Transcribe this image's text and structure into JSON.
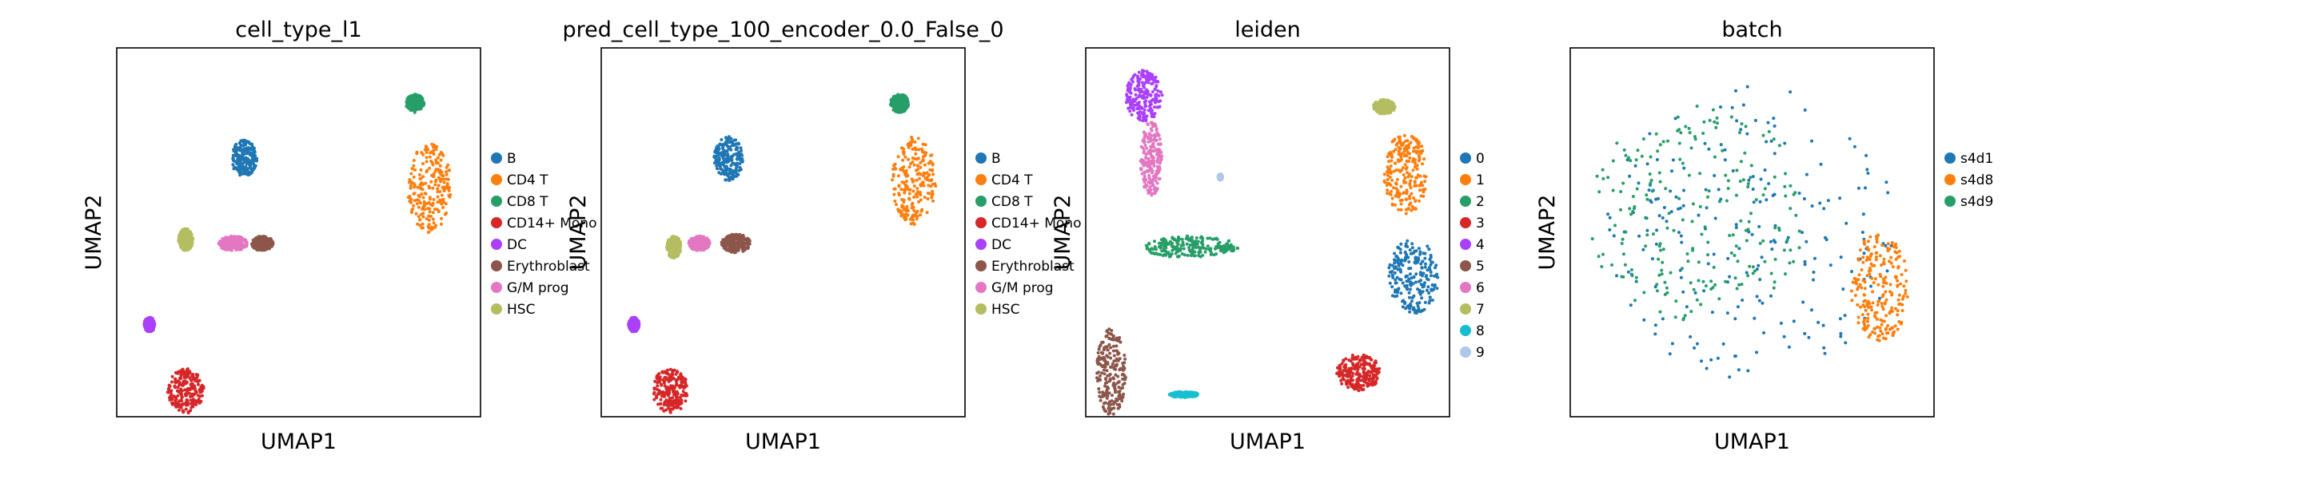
{
  "chart_data": [
    {
      "type": "scatter",
      "title": "cell_type_l1",
      "xlabel": "UMAP1",
      "ylabel": "UMAP2",
      "legend_placement": "right",
      "legend": [
        {
          "label": "B",
          "color": "#1f77b4"
        },
        {
          "label": "CD4 T",
          "color": "#ff7f0e"
        },
        {
          "label": "CD8 T",
          "color": "#279e68"
        },
        {
          "label": "CD14+ Mono",
          "color": "#d62728"
        },
        {
          "label": "DC",
          "color": "#aa40fc"
        },
        {
          "label": "Erythroblast",
          "color": "#8c564b"
        },
        {
          "label": "G/M prog",
          "color": "#e377c2"
        },
        {
          "label": "HSC",
          "color": "#b5bd61"
        }
      ],
      "clusters": [
        {
          "label": "B",
          "cx": 0.35,
          "cy": 0.7,
          "rx": 0.035,
          "ry": 0.05
        },
        {
          "label": "CD4 T",
          "cx": 0.86,
          "cy": 0.62,
          "rx": 0.06,
          "ry": 0.12
        },
        {
          "label": "CD8 T",
          "cx": 0.82,
          "cy": 0.85,
          "rx": 0.025,
          "ry": 0.025
        },
        {
          "label": "CD14+ Mono",
          "cx": 0.19,
          "cy": 0.07,
          "rx": 0.05,
          "ry": 0.06
        },
        {
          "label": "DC",
          "cx": 0.09,
          "cy": 0.25,
          "rx": 0.015,
          "ry": 0.02
        },
        {
          "label": "Erythroblast",
          "cx": 0.4,
          "cy": 0.47,
          "rx": 0.03,
          "ry": 0.02
        },
        {
          "label": "G/M prog",
          "cx": 0.32,
          "cy": 0.47,
          "rx": 0.04,
          "ry": 0.02
        },
        {
          "label": "HSC",
          "cx": 0.19,
          "cy": 0.48,
          "rx": 0.02,
          "ry": 0.03
        }
      ]
    },
    {
      "type": "scatter",
      "title": "pred_cell_type_100_encoder_0.0_False_0",
      "xlabel": "UMAP1",
      "ylabel": "UMAP2",
      "legend_placement": "right",
      "legend": [
        {
          "label": "B",
          "color": "#1f77b4"
        },
        {
          "label": "CD4 T",
          "color": "#ff7f0e"
        },
        {
          "label": "CD8 T",
          "color": "#279e68"
        },
        {
          "label": "CD14+ Mono",
          "color": "#d62728"
        },
        {
          "label": "DC",
          "color": "#aa40fc"
        },
        {
          "label": "Erythroblast",
          "color": "#8c564b"
        },
        {
          "label": "G/M prog",
          "color": "#e377c2"
        },
        {
          "label": "HSC",
          "color": "#b5bd61"
        }
      ],
      "clusters": [
        {
          "label": "B",
          "cx": 0.35,
          "cy": 0.7,
          "rx": 0.04,
          "ry": 0.06
        },
        {
          "label": "CD4 T",
          "cx": 0.86,
          "cy": 0.64,
          "rx": 0.06,
          "ry": 0.12
        },
        {
          "label": "CD8 T",
          "cx": 0.82,
          "cy": 0.85,
          "rx": 0.025,
          "ry": 0.025
        },
        {
          "label": "CD14+ Mono",
          "cx": 0.19,
          "cy": 0.07,
          "rx": 0.05,
          "ry": 0.06
        },
        {
          "label": "DC",
          "cx": 0.09,
          "cy": 0.25,
          "rx": 0.015,
          "ry": 0.02
        },
        {
          "label": "Erythroblast",
          "cx": 0.37,
          "cy": 0.47,
          "rx": 0.04,
          "ry": 0.025
        },
        {
          "label": "G/M prog",
          "cx": 0.27,
          "cy": 0.47,
          "rx": 0.03,
          "ry": 0.02
        },
        {
          "label": "HSC",
          "cx": 0.2,
          "cy": 0.46,
          "rx": 0.02,
          "ry": 0.03
        }
      ]
    },
    {
      "type": "scatter",
      "title": "leiden",
      "xlabel": "UMAP1",
      "ylabel": "UMAP2",
      "legend_placement": "right",
      "legend": [
        {
          "label": "0",
          "color": "#1f77b4"
        },
        {
          "label": "1",
          "color": "#ff7f0e"
        },
        {
          "label": "2",
          "color": "#279e68"
        },
        {
          "label": "3",
          "color": "#d62728"
        },
        {
          "label": "4",
          "color": "#aa40fc"
        },
        {
          "label": "5",
          "color": "#8c564b"
        },
        {
          "label": "6",
          "color": "#e377c2"
        },
        {
          "label": "7",
          "color": "#b5bd61"
        },
        {
          "label": "8",
          "color": "#17becf"
        },
        {
          "label": "9",
          "color": "#aec7e8"
        }
      ],
      "clusters": [
        {
          "label": "0",
          "cx": 0.9,
          "cy": 0.38,
          "rx": 0.07,
          "ry": 0.1
        },
        {
          "label": "1",
          "cx": 0.88,
          "cy": 0.66,
          "rx": 0.06,
          "ry": 0.11
        },
        {
          "label": "2",
          "cx": 0.29,
          "cy": 0.46,
          "rx": 0.13,
          "ry": 0.03
        },
        {
          "label": "3",
          "cx": 0.75,
          "cy": 0.12,
          "rx": 0.06,
          "ry": 0.05
        },
        {
          "label": "4",
          "cx": 0.16,
          "cy": 0.87,
          "rx": 0.05,
          "ry": 0.07
        },
        {
          "label": "5",
          "cx": 0.07,
          "cy": 0.12,
          "rx": 0.04,
          "ry": 0.12
        },
        {
          "label": "6",
          "cx": 0.18,
          "cy": 0.7,
          "rx": 0.03,
          "ry": 0.1
        },
        {
          "label": "7",
          "cx": 0.82,
          "cy": 0.84,
          "rx": 0.03,
          "ry": 0.02
        },
        {
          "label": "8",
          "cx": 0.27,
          "cy": 0.06,
          "rx": 0.04,
          "ry": 0.008
        },
        {
          "label": "9",
          "cx": 0.37,
          "cy": 0.65,
          "rx": 0.006,
          "ry": 0.008
        }
      ]
    },
    {
      "type": "scatter",
      "title": "batch",
      "xlabel": "UMAP1",
      "ylabel": "UMAP2",
      "legend_placement": "right",
      "legend": [
        {
          "label": "s4d1",
          "color": "#1f77b4"
        },
        {
          "label": "s4d8",
          "color": "#ff7f0e"
        },
        {
          "label": "s4d9",
          "color": "#279e68"
        }
      ],
      "clusters": [
        {
          "label": "s4d1",
          "cx": 0.5,
          "cy": 0.5,
          "rx": 0.4,
          "ry": 0.4
        },
        {
          "label": "s4d8",
          "cx": 0.85,
          "cy": 0.35,
          "rx": 0.08,
          "ry": 0.15
        },
        {
          "label": "s4d9",
          "cx": 0.35,
          "cy": 0.55,
          "rx": 0.3,
          "ry": 0.3
        }
      ]
    }
  ]
}
